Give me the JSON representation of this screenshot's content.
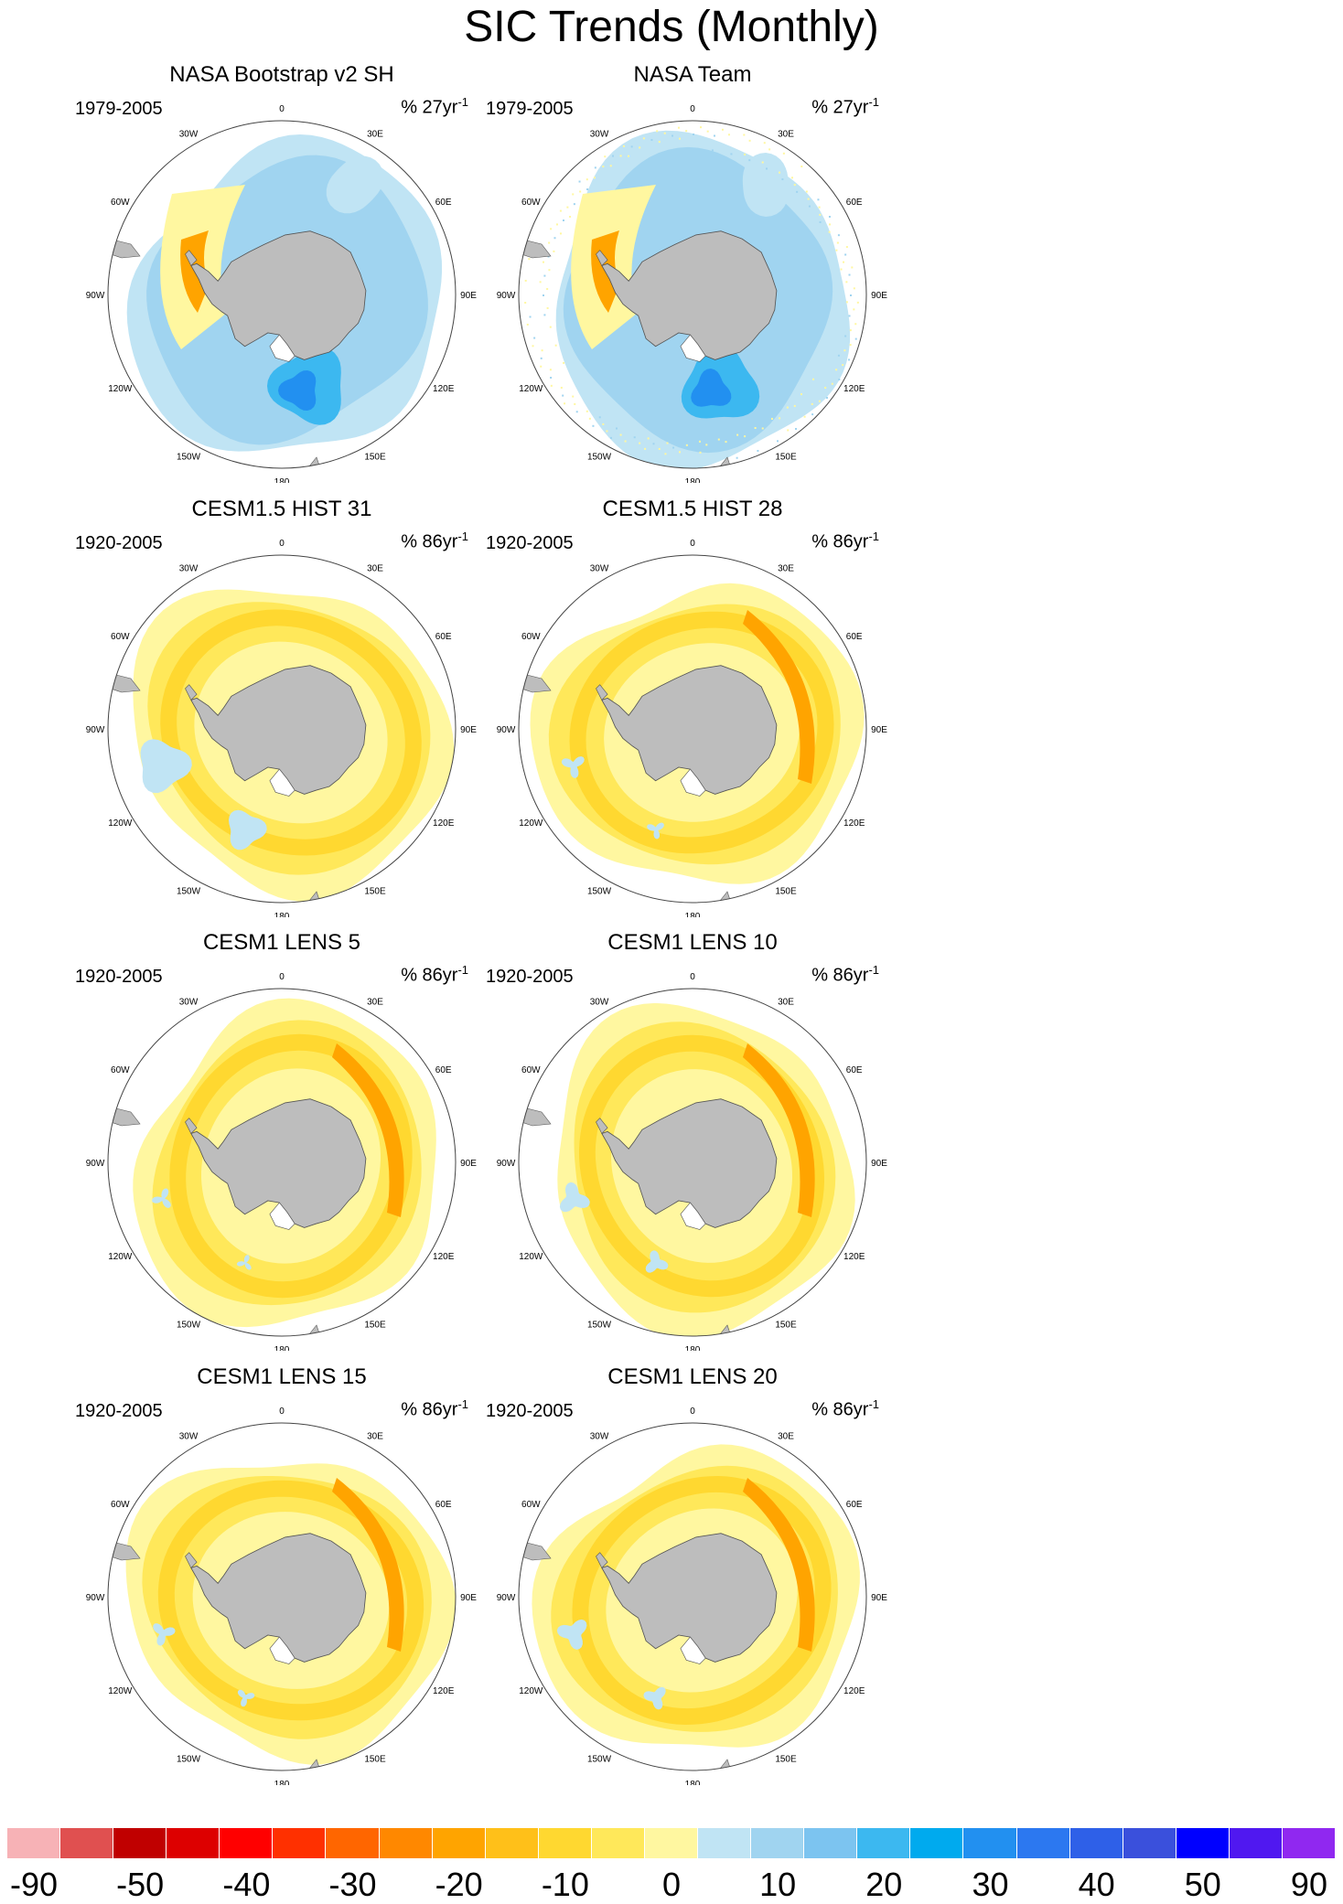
{
  "title": "SIC Trends (Monthly)",
  "panels": [
    {
      "title": "NASA Bootstrap v2 SH",
      "period": "1979-2005",
      "units_prefix": "% 27yr",
      "units_sup": "-1",
      "pattern": "obs_bootstrap"
    },
    {
      "title": "NASA Team",
      "period": "1979-2005",
      "units_prefix": "% 27yr",
      "units_sup": "-1",
      "pattern": "obs_team"
    },
    {
      "title": "CESM1.5 HIST 31",
      "period": "1920-2005",
      "units_prefix": "% 86yr",
      "units_sup": "-1",
      "pattern": "hist31"
    },
    {
      "title": "CESM1.5 HIST 28",
      "period": "1920-2005",
      "units_prefix": "% 86yr",
      "units_sup": "-1",
      "pattern": "hist28"
    },
    {
      "title": "CESM1 LENS 5",
      "period": "1920-2005",
      "units_prefix": "% 86yr",
      "units_sup": "-1",
      "pattern": "lens5"
    },
    {
      "title": "CESM1 LENS 10",
      "period": "1920-2005",
      "units_prefix": "% 86yr",
      "units_sup": "-1",
      "pattern": "lens10"
    },
    {
      "title": "CESM1 LENS 15",
      "period": "1920-2005",
      "units_prefix": "% 86yr",
      "units_sup": "-1",
      "pattern": "lens15"
    },
    {
      "title": "CESM1 LENS 20",
      "period": "1920-2005",
      "units_prefix": "% 86yr",
      "units_sup": "-1",
      "pattern": "lens20"
    }
  ],
  "longitude_labels": [
    "0",
    "30E",
    "60E",
    "90E",
    "120E",
    "150E",
    "180",
    "150W",
    "120W",
    "90W",
    "60W",
    "30W"
  ],
  "colorbar": {
    "colors": [
      "#f7b2b6",
      "#e05050",
      "#c00000",
      "#dd0000",
      "#ff0000",
      "#ff3000",
      "#ff6600",
      "#ff8800",
      "#ffa400",
      "#ffc019",
      "#ffd830",
      "#ffe85a",
      "#fff7a0",
      "#c0e4f4",
      "#a0d4f0",
      "#7cc4f0",
      "#3cb8f0",
      "#00aaee",
      "#2290f0",
      "#2c78f0",
      "#2e60e8",
      "#3a50dc",
      "#0000ff",
      "#5018f0",
      "#9028f0"
    ],
    "tick_labels": [
      "-90",
      "-50",
      "-40",
      "-30",
      "-20",
      "-10",
      "0",
      "10",
      "20",
      "30",
      "40",
      "50",
      "90"
    ]
  },
  "land_color": "#bdbdbd"
}
